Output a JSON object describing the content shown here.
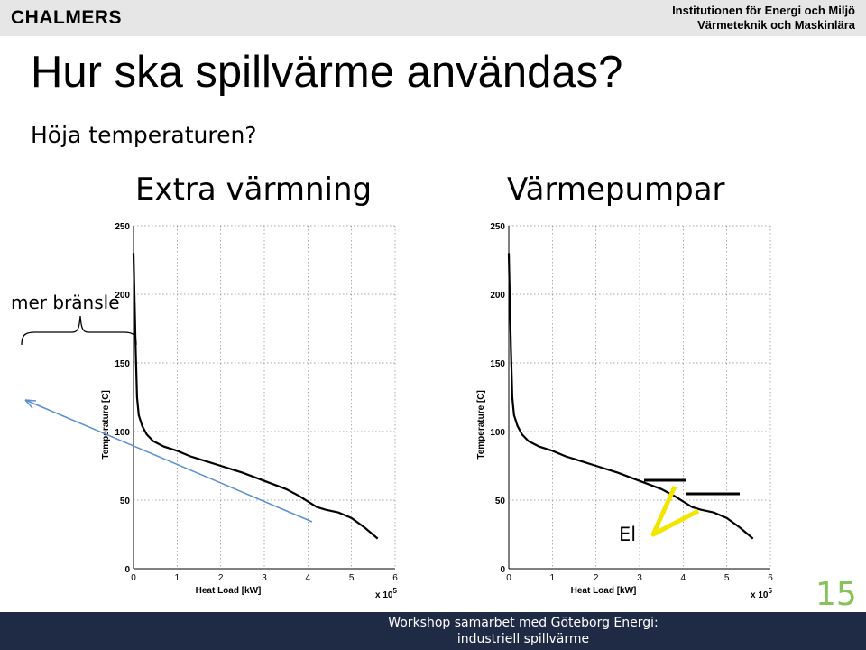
{
  "header": {
    "logo": "CHALMERS",
    "institution_line1": "Institutionen för Energi och Miljö",
    "institution_line2": "Värmeteknik och Maskinlära"
  },
  "slide": {
    "title": "Hur ska spillvärme användas?",
    "subtitle": "Höja temperaturen?",
    "left_heading": "Extra värmning",
    "right_heading": "Värmepumpar",
    "side_label": "mer bränsle",
    "el_label": "El",
    "page_number": "15",
    "arrow_color": "#5b8fd0",
    "highlight_color": "#f2e600",
    "page_number_color": "#86c35a"
  },
  "footer": {
    "line1": "Workshop samarbet med Göteborg Energi:",
    "line2": "industriell spillvärme"
  },
  "chart_data": [
    {
      "type": "line",
      "title": "",
      "xlabel": "Heat Load [kW]",
      "ylabel": "Temperature [C]",
      "x_multiplier_label": "x 10",
      "x_multiplier_exp": "5",
      "xlim": [
        0,
        6
      ],
      "ylim": [
        0,
        250
      ],
      "xticks": [
        "0",
        "1",
        "2",
        "3",
        "4",
        "5",
        "6"
      ],
      "yticks": [
        "0",
        "50",
        "100",
        "150",
        "200",
        "250"
      ],
      "grid": true,
      "x": [
        0,
        0.02,
        0.05,
        0.08,
        0.12,
        0.2,
        0.3,
        0.45,
        0.7,
        1.0,
        1.3,
        1.7,
        2.0,
        2.5,
        3.0,
        3.5,
        3.8,
        4.2,
        4.4,
        4.7,
        5.0,
        5.3,
        5.6
      ],
      "y": [
        230,
        200,
        160,
        125,
        112,
        104,
        98,
        93,
        89,
        86,
        82,
        78,
        75,
        70,
        64,
        58,
        53,
        45,
        43,
        41,
        37,
        30,
        22
      ]
    },
    {
      "type": "line",
      "title": "",
      "xlabel": "Heat Load [kW]",
      "ylabel": "Temperature [C]",
      "x_multiplier_label": "x 10",
      "x_multiplier_exp": "5",
      "xlim": [
        0,
        6
      ],
      "ylim": [
        0,
        250
      ],
      "xticks": [
        "0",
        "1",
        "2",
        "3",
        "4",
        "5",
        "6"
      ],
      "yticks": [
        "0",
        "50",
        "100",
        "150",
        "200",
        "250"
      ],
      "grid": true,
      "x": [
        0,
        0.02,
        0.05,
        0.08,
        0.12,
        0.2,
        0.3,
        0.45,
        0.7,
        1.0,
        1.3,
        1.7,
        2.0,
        2.5,
        3.0,
        3.5,
        3.8,
        4.2,
        4.4,
        4.7,
        5.0,
        5.3,
        5.6
      ],
      "y": [
        230,
        200,
        160,
        125,
        112,
        104,
        98,
        93,
        89,
        86,
        82,
        78,
        75,
        70,
        64,
        58,
        53,
        45,
        43,
        41,
        37,
        30,
        22
      ]
    }
  ]
}
